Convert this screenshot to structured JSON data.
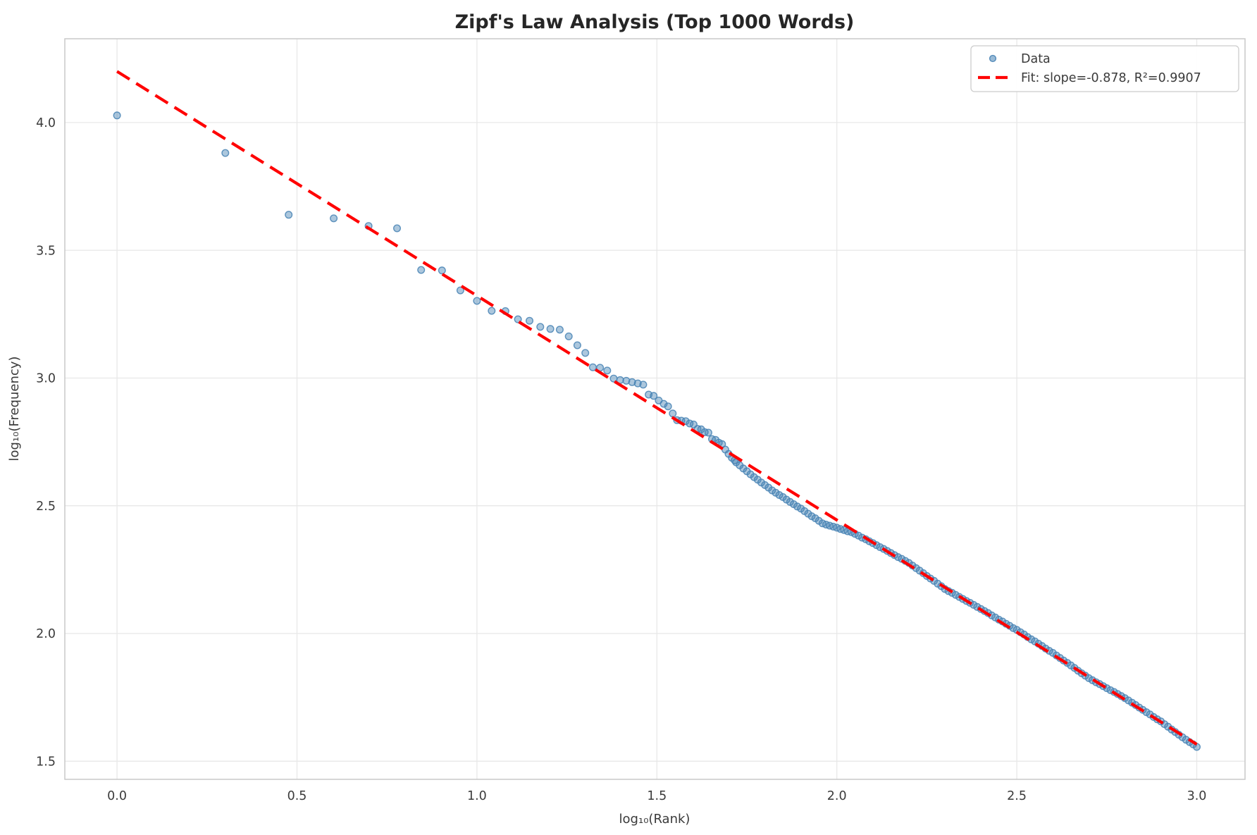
{
  "title": "Zipf's Law Analysis (Top 1000 Words)",
  "colors": {
    "background": "#FFFFFF",
    "grid": "#E8E8E8",
    "spine": "#C9C9C9",
    "tick_text": "#3A3A3A",
    "title_text": "#262626",
    "legend_border": "#CCCCCC",
    "scatter": "#4682B4",
    "fit_line": "#FF0000"
  },
  "legend": {
    "position": "upper right",
    "items": [
      {
        "label": "Data",
        "marker": "scatter-dot"
      },
      {
        "label": "Fit: slope=-0.878, R²=0.9907",
        "marker": "red-dashed-line"
      }
    ]
  },
  "chart_data": {
    "type": "scatter",
    "title": "Zipf's Law Analysis (Top 1000 Words)",
    "xlabel": "log₁₀(Rank)",
    "ylabel": "log₁₀(Frequency)",
    "xlim": [
      -0.145,
      3.134
    ],
    "ylim": [
      1.429,
      4.328
    ],
    "grid": true,
    "legend_position": "upper right",
    "x_ticks": {
      "values": [
        0.0,
        0.5,
        1.0,
        1.5,
        2.0,
        2.5,
        3.0
      ],
      "labels": [
        "0.0",
        "0.5",
        "1.0",
        "1.5",
        "2.0",
        "2.5",
        "3.0"
      ]
    },
    "y_ticks": {
      "values": [
        1.5,
        2.0,
        2.5,
        3.0,
        3.5,
        4.0
      ],
      "labels": [
        "1.5",
        "2.0",
        "2.5",
        "3.0",
        "3.5",
        "4.0"
      ]
    },
    "series": [
      {
        "name": "Data",
        "type": "scatter",
        "color": "#4682B4",
        "points": [
          [
            0,
            4.028
          ],
          [
            0.301,
            3.881
          ],
          [
            0.477,
            3.639
          ],
          [
            0.602,
            3.625
          ],
          [
            0.699,
            3.595
          ],
          [
            0.778,
            3.586
          ],
          [
            0.845,
            3.423
          ],
          [
            0.903,
            3.421
          ],
          [
            0.954,
            3.343
          ],
          [
            1,
            3.302
          ],
          [
            1.041,
            3.263
          ],
          [
            1.079,
            3.262
          ],
          [
            1.114,
            3.23
          ],
          [
            1.146,
            3.224
          ],
          [
            1.176,
            3.2
          ],
          [
            1.204,
            3.192
          ],
          [
            1.23,
            3.189
          ],
          [
            1.255,
            3.163
          ],
          [
            1.279,
            3.128
          ],
          [
            1.301,
            3.098
          ],
          [
            1.322,
            3.042
          ],
          [
            1.342,
            3.04
          ],
          [
            1.362,
            3.029
          ],
          [
            1.38,
            2.998
          ],
          [
            1.398,
            2.992
          ],
          [
            1.415,
            2.989
          ],
          [
            1.431,
            2.984
          ],
          [
            1.447,
            2.979
          ],
          [
            1.462,
            2.974
          ],
          [
            1.477,
            2.935
          ],
          [
            1.491,
            2.93
          ],
          [
            1.505,
            2.912
          ],
          [
            1.519,
            2.899
          ],
          [
            1.531,
            2.889
          ],
          [
            1.544,
            2.861
          ],
          [
            1.556,
            2.835
          ],
          [
            1.568,
            2.833
          ],
          [
            1.58,
            2.831
          ],
          [
            1.591,
            2.822
          ],
          [
            1.602,
            2.818
          ],
          [
            1.613,
            2.801
          ],
          [
            1.623,
            2.799
          ],
          [
            1.633,
            2.788
          ],
          [
            1.643,
            2.786
          ],
          [
            1.653,
            2.761
          ],
          [
            1.663,
            2.758
          ],
          [
            1.672,
            2.747
          ],
          [
            1.681,
            2.741
          ],
          [
            1.69,
            2.72
          ],
          [
            1.699,
            2.703
          ],
          [
            1.708,
            2.688
          ],
          [
            1.716,
            2.678
          ],
          [
            1.72,
            2.67
          ],
          [
            1.73,
            2.658
          ],
          [
            1.74,
            2.646
          ],
          [
            1.75,
            2.635
          ],
          [
            1.76,
            2.623
          ],
          [
            1.77,
            2.612
          ],
          [
            1.78,
            2.602
          ],
          [
            1.79,
            2.591
          ],
          [
            1.8,
            2.581
          ],
          [
            1.81,
            2.571
          ],
          [
            1.82,
            2.56
          ],
          [
            1.83,
            2.551
          ],
          [
            1.84,
            2.542
          ],
          [
            1.85,
            2.534
          ],
          [
            1.86,
            2.524
          ],
          [
            1.87,
            2.515
          ],
          [
            1.88,
            2.506
          ],
          [
            1.89,
            2.497
          ],
          [
            1.9,
            2.489
          ],
          [
            1.91,
            2.479
          ],
          [
            1.92,
            2.469
          ],
          [
            1.93,
            2.459
          ],
          [
            1.94,
            2.451
          ],
          [
            1.95,
            2.441
          ],
          [
            1.96,
            2.431
          ],
          [
            1.97,
            2.426
          ],
          [
            1.98,
            2.422
          ],
          [
            1.99,
            2.418
          ],
          [
            2,
            2.414
          ],
          [
            2.01,
            2.409
          ],
          [
            2.02,
            2.405
          ],
          [
            2.03,
            2.4
          ],
          [
            2.04,
            2.397
          ],
          [
            2.05,
            2.39
          ],
          [
            2.06,
            2.383
          ],
          [
            2.07,
            2.375
          ],
          [
            2.08,
            2.369
          ],
          [
            2.09,
            2.361
          ],
          [
            2.1,
            2.354
          ],
          [
            2.11,
            2.346
          ],
          [
            2.12,
            2.338
          ],
          [
            2.13,
            2.331
          ],
          [
            2.14,
            2.323
          ],
          [
            2.15,
            2.315
          ],
          [
            2.16,
            2.307
          ],
          [
            2.17,
            2.299
          ],
          [
            2.18,
            2.292
          ],
          [
            2.19,
            2.284
          ],
          [
            2.2,
            2.276
          ],
          [
            2.21,
            2.266
          ],
          [
            2.22,
            2.256
          ],
          [
            2.23,
            2.246
          ],
          [
            2.24,
            2.236
          ],
          [
            2.25,
            2.225
          ],
          [
            2.26,
            2.215
          ],
          [
            2.27,
            2.206
          ],
          [
            2.28,
            2.195
          ],
          [
            2.29,
            2.185
          ],
          [
            2.3,
            2.174
          ],
          [
            2.31,
            2.166
          ],
          [
            2.32,
            2.159
          ],
          [
            2.33,
            2.151
          ],
          [
            2.34,
            2.143
          ],
          [
            2.35,
            2.135
          ],
          [
            2.36,
            2.127
          ],
          [
            2.37,
            2.12
          ],
          [
            2.38,
            2.112
          ],
          [
            2.39,
            2.104
          ],
          [
            2.4,
            2.096
          ],
          [
            2.41,
            2.088
          ],
          [
            2.42,
            2.08
          ],
          [
            2.43,
            2.071
          ],
          [
            2.44,
            2.063
          ],
          [
            2.45,
            2.054
          ],
          [
            2.46,
            2.047
          ],
          [
            2.47,
            2.038
          ],
          [
            2.48,
            2.03
          ],
          [
            2.49,
            2.021
          ],
          [
            2.5,
            2.014
          ],
          [
            2.51,
            2.005
          ],
          [
            2.52,
            1.996
          ],
          [
            2.53,
            1.986
          ],
          [
            2.54,
            1.977
          ],
          [
            2.55,
            1.969
          ],
          [
            2.56,
            1.96
          ],
          [
            2.57,
            1.951
          ],
          [
            2.58,
            1.941
          ],
          [
            2.59,
            1.932
          ],
          [
            2.6,
            1.924
          ],
          [
            2.61,
            1.914
          ],
          [
            2.62,
            1.904
          ],
          [
            2.63,
            1.894
          ],
          [
            2.64,
            1.885
          ],
          [
            2.65,
            1.875
          ],
          [
            2.66,
            1.865
          ],
          [
            2.67,
            1.854
          ],
          [
            2.68,
            1.844
          ],
          [
            2.69,
            1.835
          ],
          [
            2.7,
            1.825
          ],
          [
            2.71,
            1.817
          ],
          [
            2.72,
            1.809
          ],
          [
            2.73,
            1.802
          ],
          [
            2.74,
            1.794
          ],
          [
            2.75,
            1.786
          ],
          [
            2.76,
            1.778
          ],
          [
            2.77,
            1.771
          ],
          [
            2.78,
            1.763
          ],
          [
            2.79,
            1.755
          ],
          [
            2.8,
            1.747
          ],
          [
            2.81,
            1.738
          ],
          [
            2.82,
            1.729
          ],
          [
            2.83,
            1.72
          ],
          [
            2.84,
            1.71
          ],
          [
            2.85,
            1.701
          ],
          [
            2.86,
            1.692
          ],
          [
            2.87,
            1.683
          ],
          [
            2.88,
            1.673
          ],
          [
            2.89,
            1.664
          ],
          [
            2.9,
            1.656
          ],
          [
            2.91,
            1.645
          ],
          [
            2.92,
            1.635
          ],
          [
            2.93,
            1.624
          ],
          [
            2.94,
            1.614
          ],
          [
            2.95,
            1.604
          ],
          [
            2.96,
            1.594
          ],
          [
            2.97,
            1.584
          ],
          [
            2.98,
            1.575
          ],
          [
            2.99,
            1.566
          ],
          [
            3,
            1.556
          ]
        ]
      },
      {
        "name": "Fit: slope=-0.878, R²=0.9907",
        "type": "line",
        "style": "dashed",
        "color": "#FF0000",
        "slope": -0.878,
        "intercept": 4.2,
        "r2": 0.9907,
        "x_range": [
          0,
          3
        ]
      }
    ]
  }
}
